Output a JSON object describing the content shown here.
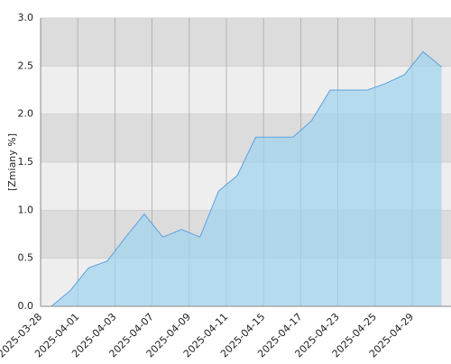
{
  "chart_data": {
    "type": "area",
    "y_label": "[Zmiany %]",
    "categories": [
      "2025-03-28",
      null,
      "2025-04-01",
      null,
      "2025-04-03",
      null,
      "2025-04-07",
      null,
      "2025-04-09",
      null,
      "2025-04-11",
      null,
      "2025-04-15",
      null,
      "2025-04-17",
      null,
      "2025-04-23",
      null,
      "2025-04-25",
      null,
      "2025-04-29",
      null
    ],
    "values": [
      0,
      0.16,
      0.4,
      0.47,
      0.72,
      0.96,
      0.72,
      0.8,
      0.72,
      1.2,
      1.36,
      1.76,
      1.76,
      1.76,
      1.93,
      2.25,
      2.25,
      2.25,
      2.32,
      2.41,
      2.65,
      2.49
    ],
    "color": "#5aa0e0",
    "ylim": [
      0,
      3
    ],
    "yticks": [
      {
        "value": 0,
        "label": "0.0"
      },
      {
        "value": 0.5,
        "label": "0.5"
      },
      {
        "value": 1,
        "label": "1.0"
      },
      {
        "value": 1.5,
        "label": "1.5"
      },
      {
        "value": 2,
        "label": "2.0"
      },
      {
        "value": 2.5,
        "label": "2.5"
      },
      {
        "value": 3,
        "label": "3.0"
      }
    ],
    "grid": true
  }
}
